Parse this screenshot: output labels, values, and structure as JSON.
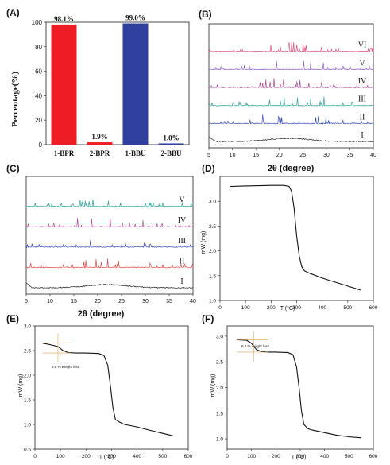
{
  "panels": {
    "A": "(A)",
    "B": "(B)",
    "C": "(C)",
    "D": "(D)",
    "E": "(E)",
    "F": "(F)"
  },
  "chart_data": [
    {
      "id": "A",
      "type": "bar",
      "categories": [
        "1-BPR",
        "2-BPR",
        "1-BBU",
        "2-BBU"
      ],
      "values": [
        98.1,
        1.9,
        99.0,
        1.0
      ],
      "value_labels": [
        "98.1%",
        "1.9%",
        "99.0%",
        "1.0%"
      ],
      "colors": [
        "#ee1c25",
        "#ee1c25",
        "#2e3f9e",
        "#2e3f9e"
      ],
      "ylabel": "Percentage(%)",
      "ylim": [
        0,
        100
      ],
      "yticks": [
        0,
        20,
        40,
        60,
        80,
        100
      ]
    },
    {
      "id": "B",
      "type": "line",
      "xlabel": "2θ (degree)",
      "xlim": [
        5,
        40
      ],
      "xticks": [
        5,
        10,
        15,
        20,
        25,
        30,
        35,
        40
      ],
      "series": [
        {
          "name": "I",
          "color": "#222222"
        },
        {
          "name": "II",
          "color": "#3b4fb8"
        },
        {
          "name": "III",
          "color": "#2aa59a"
        },
        {
          "name": "IV",
          "color": "#b0489b"
        },
        {
          "name": "V",
          "color": "#8a5fc8"
        },
        {
          "name": "VI",
          "color": "#e0507a"
        }
      ]
    },
    {
      "id": "C",
      "type": "line",
      "xlabel": "2θ (degree)",
      "xlim": [
        5,
        40
      ],
      "xticks": [
        5,
        10,
        15,
        20,
        25,
        30,
        35,
        40
      ],
      "series": [
        {
          "name": "I",
          "color": "#222222"
        },
        {
          "name": "II",
          "color": "#e04848"
        },
        {
          "name": "III",
          "color": "#3b4fb8"
        },
        {
          "name": "IV",
          "color": "#c8459b"
        },
        {
          "name": "V",
          "color": "#2aa59a"
        }
      ]
    },
    {
      "id": "D",
      "type": "line",
      "xlabel": "T (°C)",
      "ylabel": "mW (mg)",
      "xlim": [
        0,
        600
      ],
      "ylim": [
        1.0,
        3.5
      ],
      "xticks": [
        0,
        100,
        200,
        300,
        400,
        500,
        600
      ],
      "yticks": [
        1.0,
        1.5,
        2.0,
        2.5,
        3.0
      ],
      "series": [
        {
          "x": [
            40,
            100,
            200,
            250,
            270,
            280,
            290,
            300,
            310,
            320,
            330,
            350,
            400,
            450,
            500,
            550
          ],
          "y": [
            3.3,
            3.31,
            3.32,
            3.32,
            3.3,
            3.2,
            2.85,
            2.3,
            1.9,
            1.68,
            1.6,
            1.55,
            1.45,
            1.37,
            1.29,
            1.21
          ]
        }
      ]
    },
    {
      "id": "E",
      "type": "line",
      "xlabel": "T (°C)",
      "ylabel": "mW (mg)",
      "xlim": [
        0,
        600
      ],
      "ylim": [
        0.5,
        3.0
      ],
      "xticks": [
        0,
        100,
        200,
        300,
        400,
        500,
        600
      ],
      "yticks": [
        0.5,
        1.0,
        1.5,
        2.0,
        2.5,
        3.0
      ],
      "annotation": "6.5 % weight loss",
      "series": [
        {
          "x": [
            30,
            60,
            90,
            110,
            130,
            160,
            200,
            250,
            270,
            285,
            295,
            305,
            315,
            330,
            350,
            400,
            450,
            500,
            540
          ],
          "y": [
            2.65,
            2.62,
            2.58,
            2.5,
            2.46,
            2.45,
            2.45,
            2.44,
            2.4,
            2.2,
            1.8,
            1.35,
            1.1,
            1.05,
            1.0,
            0.95,
            0.88,
            0.82,
            0.77
          ]
        }
      ]
    },
    {
      "id": "F",
      "type": "line",
      "xlabel": "T (°C)",
      "ylabel": "mW (mg)",
      "xlim": [
        0,
        600
      ],
      "ylim": [
        0.8,
        3.2
      ],
      "xticks": [
        0,
        100,
        200,
        300,
        400,
        500,
        600
      ],
      "yticks": [
        1.0,
        1.5,
        2.0,
        2.5,
        3.0
      ],
      "annotation": "8.2 % weight loss",
      "series": [
        {
          "x": [
            40,
            80,
            100,
            120,
            140,
            170,
            200,
            250,
            270,
            285,
            295,
            305,
            315,
            330,
            350,
            400,
            450,
            500,
            550
          ],
          "y": [
            2.93,
            2.92,
            2.86,
            2.74,
            2.7,
            2.69,
            2.69,
            2.68,
            2.64,
            2.4,
            2.0,
            1.55,
            1.28,
            1.2,
            1.17,
            1.12,
            1.07,
            1.04,
            1.02
          ]
        }
      ]
    }
  ]
}
